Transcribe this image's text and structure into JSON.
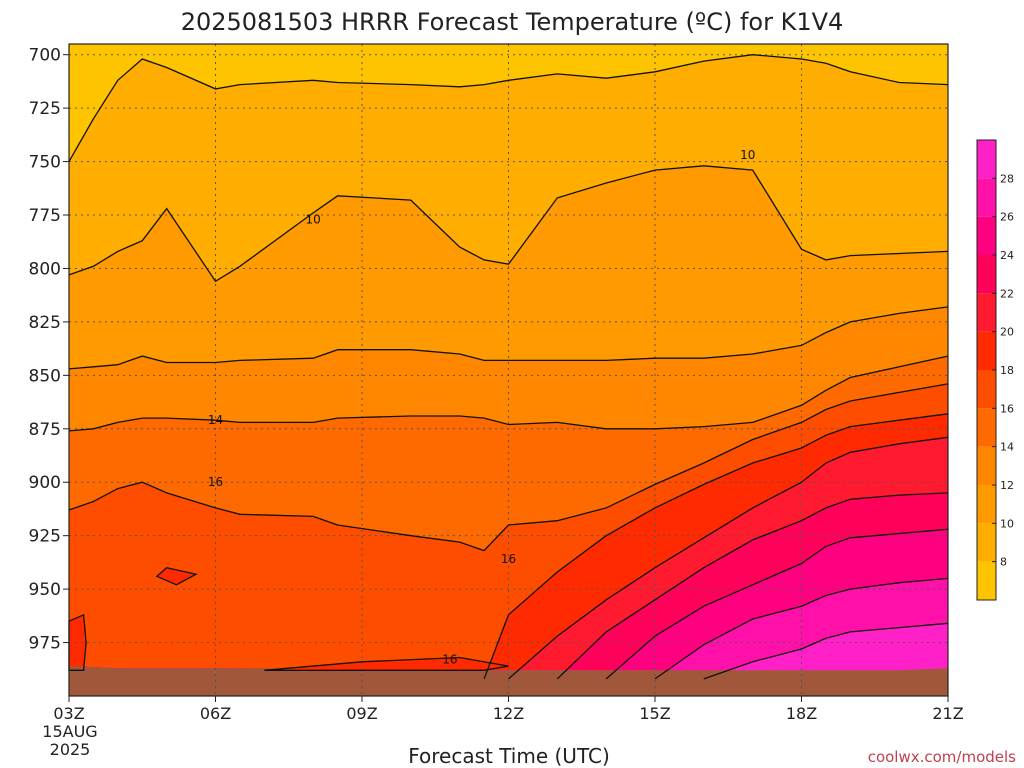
{
  "chart_data": {
    "type": "heatmap",
    "title": "2025081503 HRRR Forecast Temperature (ºC) for K1V4",
    "xlabel": "Forecast Time (UTC)",
    "ylabel": "",
    "x_hours": [
      3,
      4,
      5,
      6,
      7,
      8,
      9,
      10,
      11,
      12,
      13,
      14,
      15,
      16,
      17,
      18,
      19,
      20,
      21
    ],
    "xlim": [
      3,
      21
    ],
    "x_ticks": [
      {
        "hour": 3,
        "label": "03Z"
      },
      {
        "hour": 6,
        "label": "06Z"
      },
      {
        "hour": 9,
        "label": "09Z"
      },
      {
        "hour": 12,
        "label": "12Z"
      },
      {
        "hour": 15,
        "label": "15Z"
      },
      {
        "hour": 18,
        "label": "18Z"
      },
      {
        "hour": 21,
        "label": "21Z"
      }
    ],
    "x_start_date": [
      "15AUG",
      "2025"
    ],
    "y_ticks": [
      700,
      725,
      750,
      775,
      800,
      825,
      850,
      875,
      900,
      925,
      950,
      975
    ],
    "ylim": [
      695,
      1000
    ],
    "y_reversed": true,
    "surface_pressure": [
      986,
      987,
      987,
      987,
      987,
      988,
      988,
      988,
      988,
      988,
      988,
      988,
      988,
      988,
      988,
      988,
      988,
      988,
      987
    ],
    "colorbar": {
      "ticks": [
        8,
        10,
        12,
        14,
        16,
        18,
        20,
        22,
        24,
        26,
        28
      ],
      "range": [
        6,
        30
      ],
      "interval": 2
    },
    "contour_interval": 2,
    "contours": [
      {
        "level": 8,
        "p": [
          750,
          730,
          712,
          702,
          706,
          716,
          714,
          712,
          713,
          714,
          715,
          714,
          712,
          709,
          711,
          708,
          703,
          700,
          702,
          704,
          708,
          713,
          714
        ]
      },
      {
        "level": 10,
        "p": [
          803,
          799,
          792,
          787,
          772,
          806,
          799,
          774,
          766,
          768,
          790,
          796,
          798,
          767,
          760,
          754,
          752,
          754,
          791,
          796,
          794,
          793,
          792
        ]
      },
      {
        "level": 12,
        "p": [
          847,
          846,
          845,
          841,
          844,
          844,
          843,
          842,
          838,
          838,
          840,
          843,
          843,
          843,
          843,
          842,
          842,
          840,
          836,
          830,
          825,
          821,
          818
        ]
      },
      {
        "level": 14,
        "p": [
          876,
          875,
          872,
          870,
          870,
          871,
          872,
          872,
          870,
          869,
          869,
          870,
          873,
          872,
          875,
          875,
          874,
          872,
          864,
          857,
          851,
          846,
          841
        ]
      },
      {
        "level": 16,
        "p": [
          913,
          909,
          903,
          900,
          905,
          912,
          915,
          916,
          920,
          925,
          928,
          932,
          920,
          918,
          912,
          901,
          891,
          880,
          872,
          866,
          862,
          858,
          854
        ]
      },
      {
        "level": 18,
        "p": [
          null,
          null,
          null,
          null,
          null,
          null,
          null,
          null,
          null,
          null,
          null,
          992,
          962,
          942,
          925,
          912,
          901,
          891,
          884,
          878,
          874,
          871,
          868
        ]
      },
      {
        "level": 20,
        "p": [
          null,
          null,
          null,
          null,
          null,
          null,
          null,
          null,
          null,
          null,
          null,
          null,
          992,
          972,
          955,
          940,
          926,
          912,
          900,
          891,
          886,
          882,
          879
        ]
      },
      {
        "level": 22,
        "p": [
          null,
          null,
          null,
          null,
          null,
          null,
          null,
          null,
          null,
          null,
          null,
          null,
          null,
          992,
          970,
          955,
          940,
          927,
          918,
          912,
          908,
          906,
          905
        ]
      },
      {
        "level": 24,
        "p": [
          null,
          null,
          null,
          null,
          null,
          null,
          null,
          null,
          null,
          null,
          null,
          null,
          null,
          null,
          992,
          972,
          958,
          948,
          938,
          930,
          926,
          924,
          922
        ]
      },
      {
        "level": 26,
        "p": [
          null,
          null,
          null,
          null,
          null,
          null,
          null,
          null,
          null,
          null,
          null,
          null,
          null,
          null,
          null,
          992,
          976,
          964,
          958,
          953,
          950,
          947,
          945
        ]
      },
      {
        "level": 28,
        "p": [
          null,
          null,
          null,
          null,
          null,
          null,
          null,
          null,
          null,
          null,
          null,
          null,
          null,
          null,
          null,
          null,
          992,
          984,
          978,
          973,
          970,
          968,
          966
        ]
      }
    ],
    "contour_x_hours": [
      3,
      3.5,
      4,
      4.5,
      5,
      6,
      6.5,
      8,
      8.5,
      10,
      11,
      11.5,
      12,
      13,
      14,
      15,
      16,
      17,
      18,
      18.5,
      19,
      20,
      21
    ],
    "closed_contours": [
      {
        "level": 18,
        "points": [
          [
            5.0,
            940
          ],
          [
            5.6,
            943
          ],
          [
            5.2,
            948
          ],
          [
            4.8,
            944
          ]
        ]
      },
      {
        "level": 18,
        "points": [
          [
            3.0,
            965
          ],
          [
            3.3,
            962
          ],
          [
            3.35,
            975
          ],
          [
            3.3,
            988
          ],
          [
            3.0,
            988
          ]
        ]
      },
      {
        "level": 18,
        "points": [
          [
            7.0,
            988
          ],
          [
            9.0,
            984
          ],
          [
            11.0,
            982
          ],
          [
            12.0,
            986
          ],
          [
            11.5,
            988
          ],
          [
            7.0,
            988
          ]
        ]
      }
    ],
    "contour_labels": [
      {
        "level": 10,
        "text": "10",
        "hour": 8.0,
        "p": 777
      },
      {
        "level": 10,
        "text": "10",
        "hour": 16.9,
        "p": 747
      },
      {
        "level": 14,
        "text": "14",
        "hour": 6.0,
        "p": 871
      },
      {
        "level": 16,
        "text": "16",
        "hour": 6.0,
        "p": 900
      },
      {
        "level": 16,
        "text": "16",
        "hour": 12.0,
        "p": 936
      },
      {
        "level": 16,
        "text": "16",
        "hour": 10.8,
        "p": 983
      }
    ]
  },
  "credit": "coolwx.com/models",
  "colors": {
    "fills": [
      "#ffc400",
      "#ffad00",
      "#ff9a00",
      "#ff8700",
      "#ff6a00",
      "#ff4d00",
      "#ff2a00",
      "#ff1a30",
      "#ff005a",
      "#ff0080",
      "#ff10a8",
      "#ff20c8"
    ],
    "terrain": "#a0573a",
    "contour": "#111111",
    "grid": "#555555"
  }
}
